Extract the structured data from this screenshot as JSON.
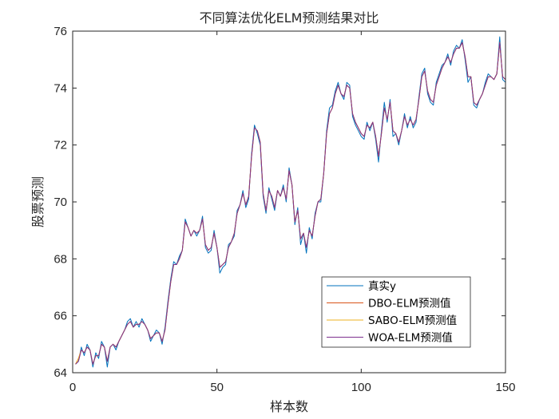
{
  "chart_data": {
    "type": "line",
    "title": "不同算法优化ELM预测结果对比",
    "xlabel": "样本数",
    "ylabel": "股票预测",
    "xlim": [
      0,
      150
    ],
    "ylim": [
      64,
      76
    ],
    "xticks": [
      0,
      50,
      100,
      150
    ],
    "yticks": [
      64,
      66,
      68,
      70,
      72,
      74,
      76
    ],
    "grid": false,
    "legend_position": "lower-right",
    "x": [
      1,
      2,
      3,
      4,
      5,
      6,
      7,
      8,
      9,
      10,
      11,
      12,
      13,
      14,
      15,
      16,
      17,
      18,
      19,
      20,
      21,
      22,
      23,
      24,
      25,
      26,
      27,
      28,
      29,
      30,
      31,
      32,
      33,
      34,
      35,
      36,
      37,
      38,
      39,
      40,
      41,
      42,
      43,
      44,
      45,
      46,
      47,
      48,
      49,
      50,
      51,
      52,
      53,
      54,
      55,
      56,
      57,
      58,
      59,
      60,
      61,
      62,
      63,
      64,
      65,
      66,
      67,
      68,
      69,
      70,
      71,
      72,
      73,
      74,
      75,
      76,
      77,
      78,
      79,
      80,
      81,
      82,
      83,
      84,
      85,
      86,
      87,
      88,
      89,
      90,
      91,
      92,
      93,
      94,
      95,
      96,
      97,
      98,
      99,
      100,
      101,
      102,
      103,
      104,
      105,
      106,
      107,
      108,
      109,
      110,
      111,
      112,
      113,
      114,
      115,
      116,
      117,
      118,
      119,
      120,
      121,
      122,
      123,
      124,
      125,
      126,
      127,
      128,
      129,
      130,
      131,
      132,
      133,
      134,
      135,
      136,
      137,
      138,
      139,
      140,
      141,
      142,
      143,
      144,
      145,
      146,
      147,
      148,
      149,
      150
    ],
    "series": [
      {
        "name": "真实y",
        "color": "#0072BD",
        "values": [
          64.3,
          64.4,
          64.9,
          64.6,
          65.0,
          64.8,
          64.2,
          64.7,
          64.5,
          65.1,
          64.9,
          64.2,
          64.9,
          65.0,
          64.8,
          65.1,
          65.3,
          65.5,
          65.8,
          65.9,
          65.6,
          65.8,
          65.6,
          65.9,
          65.7,
          65.5,
          65.1,
          65.3,
          65.5,
          65.4,
          65.0,
          65.6,
          66.5,
          67.3,
          67.9,
          67.8,
          68.1,
          68.3,
          69.4,
          69.1,
          68.8,
          69.0,
          68.8,
          69.0,
          69.5,
          68.4,
          68.2,
          68.3,
          69.0,
          68.4,
          67.5,
          67.7,
          67.8,
          68.5,
          68.6,
          68.8,
          69.7,
          69.9,
          70.4,
          69.8,
          70.1,
          71.7,
          72.7,
          72.4,
          72.0,
          70.2,
          69.6,
          70.5,
          70.1,
          69.7,
          70.4,
          70.2,
          70.6,
          70.0,
          71.2,
          70.6,
          69.2,
          69.8,
          68.5,
          68.9,
          68.2,
          69.1,
          68.7,
          69.6,
          70.0,
          70.0,
          71.0,
          72.5,
          73.3,
          73.4,
          73.9,
          74.2,
          73.8,
          73.6,
          74.2,
          74.1,
          73.0,
          72.7,
          72.5,
          72.3,
          72.2,
          72.8,
          72.5,
          72.8,
          72.2,
          71.4,
          72.5,
          73.5,
          72.8,
          73.6,
          72.3,
          72.4,
          72.0,
          72.5,
          73.1,
          72.6,
          73.0,
          72.6,
          72.8,
          73.7,
          74.5,
          74.7,
          73.8,
          73.5,
          73.4,
          74.2,
          74.5,
          74.8,
          74.9,
          75.2,
          74.8,
          75.3,
          75.5,
          75.4,
          75.7,
          75.0,
          74.2,
          74.4,
          73.4,
          73.3,
          73.6,
          73.8,
          74.2,
          74.5,
          74.4,
          74.3,
          74.5,
          75.8,
          74.3,
          74.2
        ]
      },
      {
        "name": "DBO-ELM预测值",
        "color": "#D95319",
        "values": [
          64.3,
          64.5,
          64.8,
          64.7,
          64.9,
          64.8,
          64.3,
          64.6,
          64.6,
          65.0,
          64.9,
          64.4,
          64.9,
          65.0,
          64.9,
          65.1,
          65.3,
          65.5,
          65.7,
          65.8,
          65.6,
          65.7,
          65.7,
          65.8,
          65.7,
          65.5,
          65.2,
          65.3,
          65.4,
          65.4,
          65.1,
          65.5,
          66.4,
          67.2,
          67.8,
          67.8,
          68.0,
          68.3,
          69.3,
          69.1,
          68.8,
          69.0,
          68.9,
          69.0,
          69.4,
          68.5,
          68.3,
          68.4,
          68.9,
          68.4,
          67.7,
          67.8,
          67.9,
          68.4,
          68.6,
          68.9,
          69.6,
          69.9,
          70.3,
          69.9,
          70.2,
          71.6,
          72.6,
          72.5,
          72.1,
          70.3,
          69.7,
          70.4,
          70.2,
          69.8,
          70.4,
          70.2,
          70.5,
          70.1,
          71.1,
          70.6,
          69.3,
          69.7,
          68.7,
          68.9,
          68.4,
          69.0,
          68.8,
          69.5,
          70.0,
          70.1,
          71.0,
          72.4,
          73.1,
          73.3,
          73.8,
          74.1,
          73.8,
          73.7,
          74.1,
          74.0,
          73.1,
          72.8,
          72.6,
          72.4,
          72.3,
          72.7,
          72.6,
          72.8,
          72.3,
          71.6,
          72.4,
          73.3,
          72.9,
          73.5,
          72.5,
          72.4,
          72.1,
          72.5,
          73.0,
          72.7,
          72.9,
          72.7,
          72.9,
          73.6,
          74.4,
          74.6,
          73.9,
          73.6,
          73.5,
          74.1,
          74.4,
          74.7,
          74.9,
          75.1,
          74.9,
          75.2,
          75.4,
          75.4,
          75.6,
          75.1,
          74.4,
          74.4,
          73.5,
          73.4,
          73.6,
          73.8,
          74.1,
          74.4,
          74.4,
          74.3,
          74.5,
          75.6,
          74.4,
          74.3
        ]
      },
      {
        "name": "SABO-ELM预测值",
        "color": "#EDB120",
        "values": [
          64.3,
          64.5,
          64.8,
          64.7,
          64.9,
          64.8,
          64.3,
          64.6,
          64.6,
          65.0,
          64.9,
          64.4,
          64.9,
          65.0,
          64.9,
          65.1,
          65.3,
          65.5,
          65.7,
          65.8,
          65.6,
          65.7,
          65.7,
          65.8,
          65.7,
          65.5,
          65.2,
          65.3,
          65.4,
          65.4,
          65.1,
          65.5,
          66.4,
          67.2,
          67.8,
          67.8,
          68.0,
          68.3,
          69.3,
          69.1,
          68.8,
          69.0,
          68.9,
          69.0,
          69.4,
          68.5,
          68.3,
          68.4,
          68.9,
          68.4,
          67.7,
          67.8,
          67.9,
          68.4,
          68.6,
          68.9,
          69.6,
          69.9,
          70.3,
          69.9,
          70.2,
          71.6,
          72.6,
          72.5,
          72.1,
          70.3,
          69.7,
          70.4,
          70.2,
          69.8,
          70.4,
          70.2,
          70.5,
          70.1,
          71.1,
          70.6,
          69.3,
          69.7,
          68.7,
          68.9,
          68.4,
          69.0,
          68.8,
          69.5,
          70.0,
          70.1,
          71.0,
          72.4,
          73.1,
          73.3,
          73.8,
          74.1,
          73.8,
          73.7,
          74.1,
          74.0,
          73.1,
          72.8,
          72.6,
          72.4,
          72.3,
          72.7,
          72.6,
          72.8,
          72.3,
          71.6,
          72.4,
          73.3,
          72.9,
          73.5,
          72.5,
          72.4,
          72.1,
          72.5,
          73.0,
          72.7,
          72.9,
          72.7,
          72.9,
          73.6,
          74.4,
          74.6,
          73.9,
          73.6,
          73.5,
          74.1,
          74.4,
          74.7,
          74.9,
          75.1,
          74.9,
          75.2,
          75.4,
          75.4,
          75.6,
          75.1,
          74.4,
          74.4,
          73.5,
          73.4,
          73.6,
          73.8,
          74.1,
          74.4,
          74.4,
          74.3,
          74.5,
          75.6,
          74.4,
          74.3
        ]
      },
      {
        "name": "WOA-ELM预测值",
        "color": "#7E2F8E",
        "values": [
          64.3,
          64.4,
          64.8,
          64.7,
          64.9,
          64.8,
          64.3,
          64.6,
          64.6,
          65.0,
          64.9,
          64.4,
          64.9,
          65.0,
          64.9,
          65.1,
          65.3,
          65.5,
          65.7,
          65.8,
          65.6,
          65.7,
          65.7,
          65.8,
          65.7,
          65.5,
          65.2,
          65.3,
          65.4,
          65.4,
          65.1,
          65.5,
          66.4,
          67.2,
          67.8,
          67.8,
          68.0,
          68.3,
          69.3,
          69.1,
          68.8,
          69.0,
          68.9,
          69.0,
          69.4,
          68.5,
          68.3,
          68.4,
          68.9,
          68.4,
          67.7,
          67.8,
          67.9,
          68.4,
          68.6,
          68.9,
          69.6,
          69.9,
          70.3,
          69.9,
          70.2,
          71.6,
          72.6,
          72.5,
          72.1,
          70.3,
          69.7,
          70.4,
          70.2,
          69.8,
          70.4,
          70.2,
          70.5,
          70.1,
          71.1,
          70.6,
          69.3,
          69.7,
          68.7,
          68.9,
          68.4,
          69.0,
          68.8,
          69.5,
          70.0,
          70.1,
          71.0,
          72.4,
          73.1,
          73.3,
          73.8,
          74.1,
          73.8,
          73.7,
          74.1,
          74.0,
          73.1,
          72.8,
          72.6,
          72.4,
          72.3,
          72.7,
          72.6,
          72.8,
          72.3,
          71.6,
          72.4,
          73.3,
          72.9,
          73.5,
          72.5,
          72.4,
          72.1,
          72.5,
          73.0,
          72.7,
          72.9,
          72.7,
          72.9,
          73.6,
          74.4,
          74.6,
          73.9,
          73.6,
          73.5,
          74.1,
          74.4,
          74.7,
          74.9,
          75.1,
          74.9,
          75.2,
          75.4,
          75.4,
          75.6,
          75.1,
          74.4,
          74.4,
          73.5,
          73.4,
          73.6,
          73.8,
          74.1,
          74.4,
          74.4,
          74.3,
          74.5,
          75.6,
          74.4,
          74.3
        ]
      }
    ]
  }
}
